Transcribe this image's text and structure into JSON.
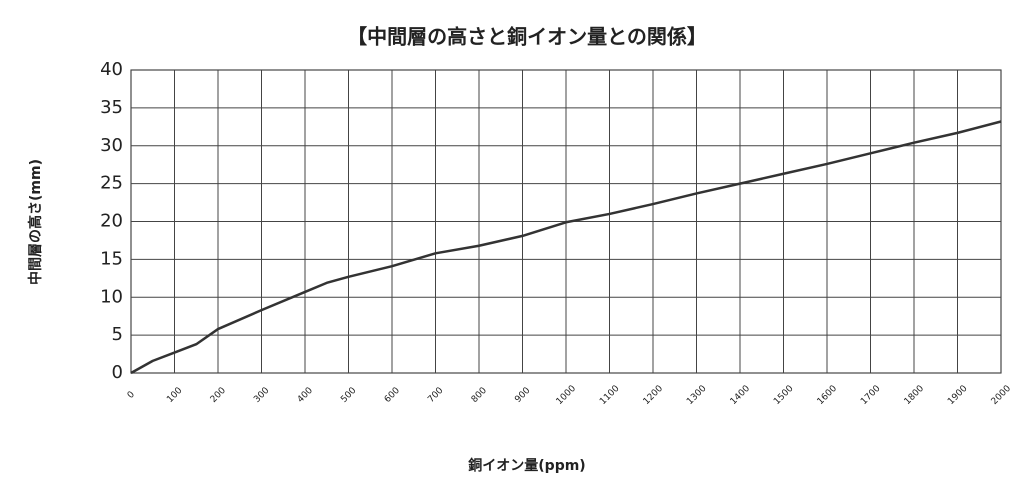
{
  "chart_data": {
    "type": "line",
    "title": "【中間層の高さと銅イオン量との関係】",
    "x_label": "銅イオン量(ppm)",
    "y_label": "中間層の高さ(mm)",
    "x": [
      0,
      50,
      100,
      150,
      200,
      300,
      400,
      450,
      500,
      600,
      700,
      800,
      900,
      1000,
      1100,
      1200,
      1300,
      1400,
      1500,
      1600,
      1700,
      1800,
      1900,
      2000
    ],
    "series": [
      {
        "name": "中間層の高さ",
        "color": "#333333",
        "values": [
          0,
          1.6,
          2.7,
          3.8,
          5.8,
          8.3,
          10.7,
          11.9,
          12.7,
          14.1,
          15.8,
          16.8,
          18.1,
          19.9,
          21.0,
          22.3,
          23.7,
          25.0,
          26.3,
          27.6,
          29.0,
          30.4,
          31.7,
          33.2
        ]
      }
    ],
    "xlim": [
      0,
      2000
    ],
    "xticks": [
      0,
      100,
      200,
      300,
      400,
      500,
      600,
      700,
      800,
      900,
      1000,
      1100,
      1200,
      1300,
      1400,
      1500,
      1600,
      1700,
      1800,
      1900,
      2000
    ],
    "ylim": [
      0,
      40
    ],
    "yticks": [
      0,
      5,
      10,
      15,
      20,
      25,
      30,
      35,
      40
    ],
    "grid": true
  }
}
